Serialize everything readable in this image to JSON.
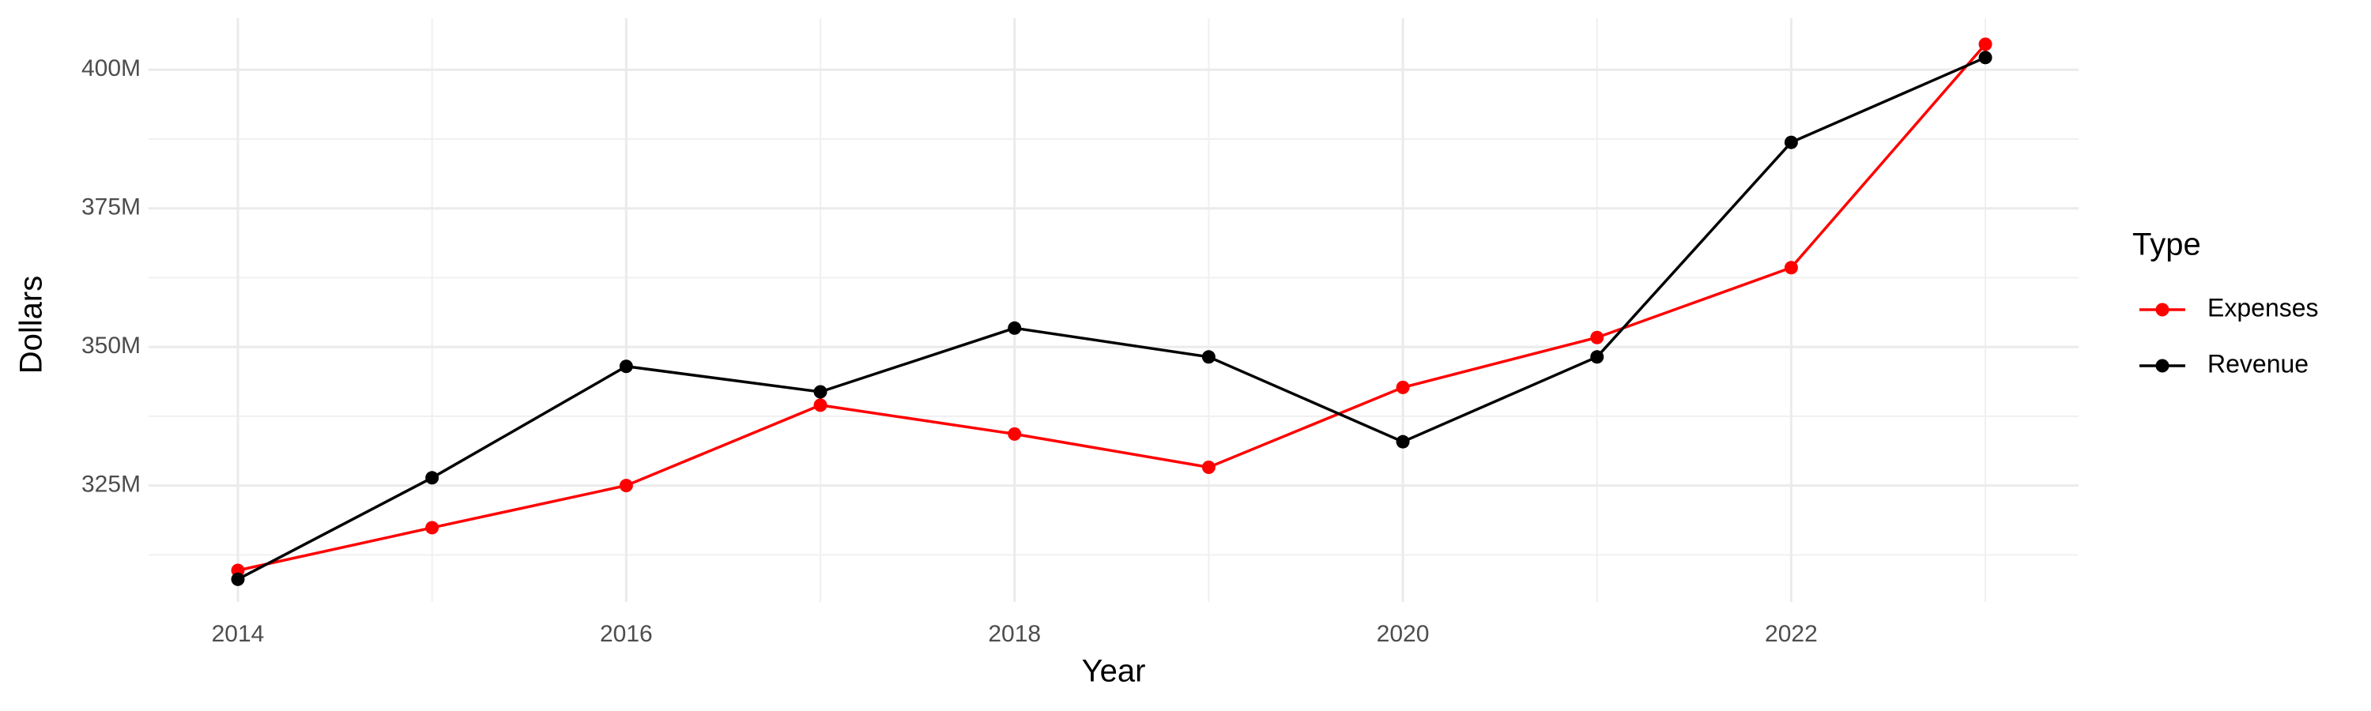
{
  "chart_data": {
    "type": "line",
    "x_label": "Year",
    "y_label": "Dollars",
    "legend_title": "Type",
    "x": [
      2014,
      2015,
      2016,
      2017,
      2018,
      2019,
      2020,
      2021,
      2022,
      2023
    ],
    "series": [
      {
        "name": "Expenses",
        "color": "#ff0000",
        "values": [
          309700000,
          317400000,
          325000000,
          339500000,
          334300000,
          328300000,
          342700000,
          351700000,
          364300000,
          404600000
        ]
      },
      {
        "name": "Revenue",
        "color": "#000000",
        "values": [
          308100000,
          326400000,
          346500000,
          341900000,
          353400000,
          348200000,
          332900000,
          348200000,
          386900000,
          402200000
        ]
      }
    ],
    "xlim": [
      2013.54,
      2023.48
    ],
    "xticks": [
      2014,
      2016,
      2018,
      2020,
      2022
    ],
    "ylim": [
      304000000,
      409300000
    ],
    "yticks": [
      {
        "value": 325000000,
        "label": "325M"
      },
      {
        "value": 350000000,
        "label": "350M"
      },
      {
        "value": 375000000,
        "label": "375M"
      },
      {
        "value": 400000000,
        "label": "400M"
      }
    ],
    "grid": true,
    "legend": "right"
  }
}
